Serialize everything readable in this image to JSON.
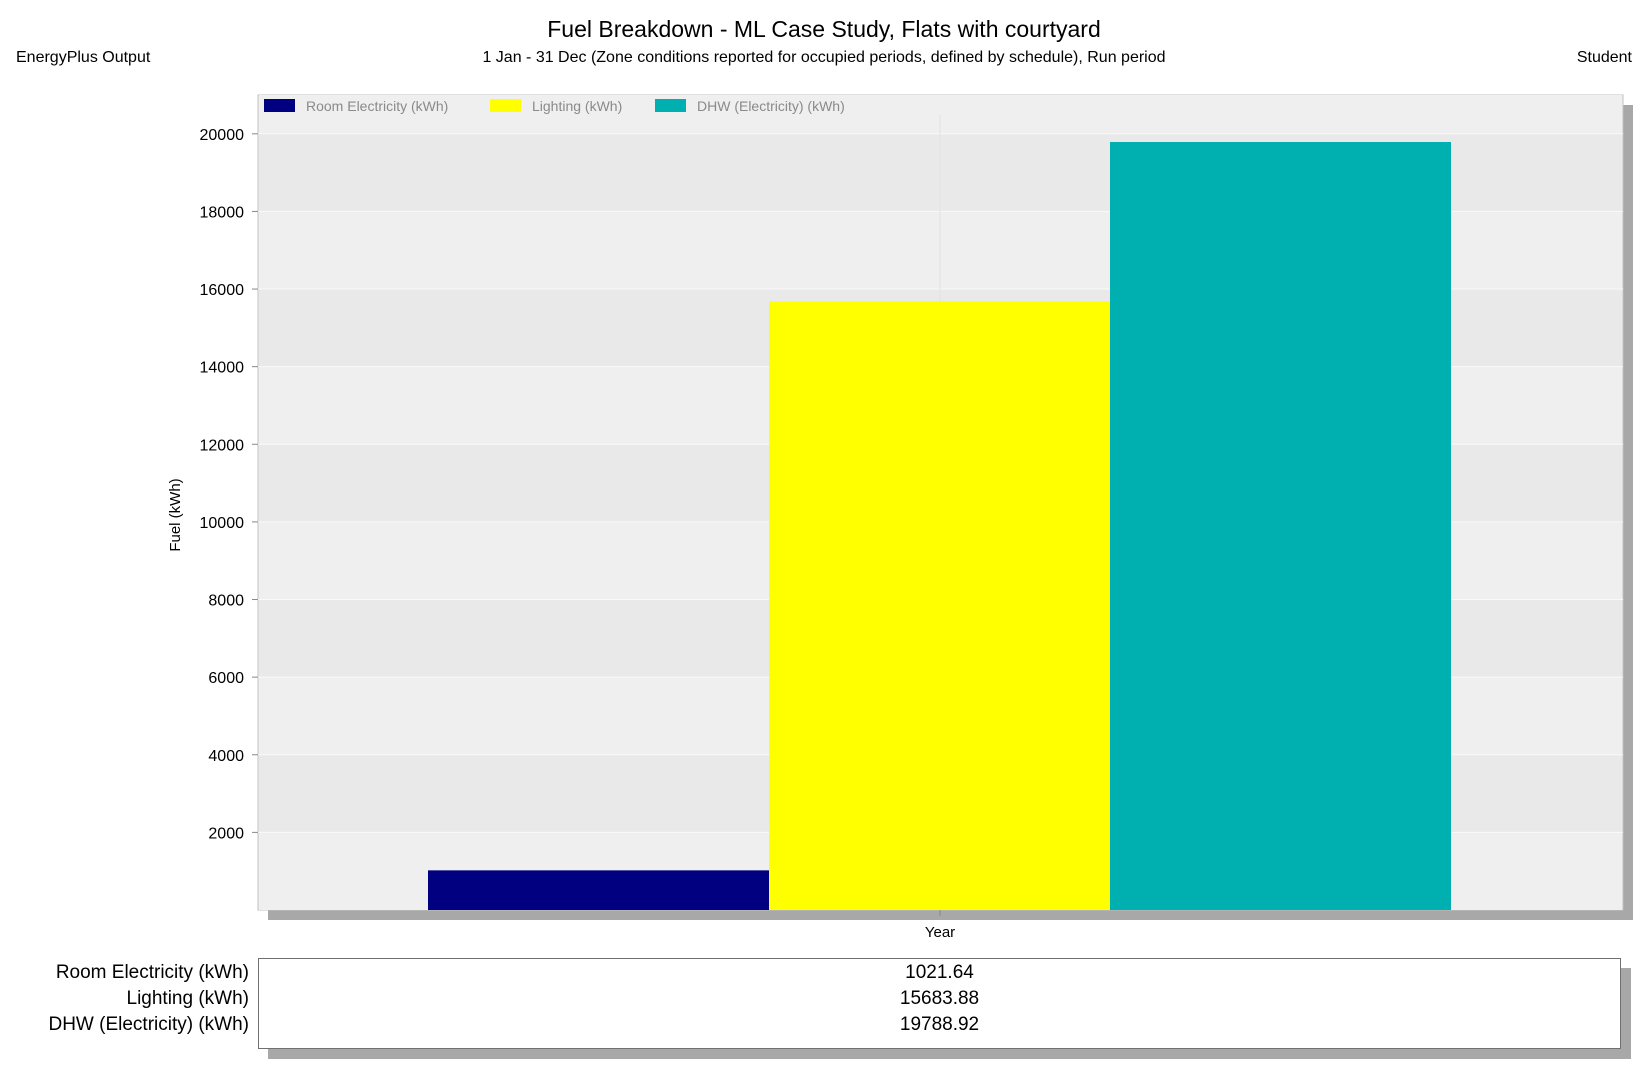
{
  "header": {
    "title": "Fuel Breakdown - ML Case Study, Flats with courtyard",
    "subtitle": "1 Jan - 31 Dec (Zone conditions reported for occupied periods, defined by schedule), Run period",
    "source": "EnergyPlus Output",
    "user": "Student"
  },
  "chart_data": {
    "type": "bar",
    "title": "Fuel Breakdown - ML Case Study, Flats with courtyard",
    "subtitle": "1 Jan - 31 Dec (Zone conditions reported for occupied periods, defined by schedule), Run period",
    "categories": [
      "Year"
    ],
    "xlabel": "Year",
    "ylabel": "Fuel (kWh)",
    "ylim": [
      0,
      21000
    ],
    "yticks": [
      2000,
      4000,
      6000,
      8000,
      10000,
      12000,
      14000,
      16000,
      18000,
      20000
    ],
    "grid": true,
    "legend_position": "top-left",
    "series": [
      {
        "name": "Room Electricity (kWh)",
        "values": [
          1021.64
        ],
        "color": "#000080"
      },
      {
        "name": "Lighting (kWh)",
        "values": [
          15683.88
        ],
        "color": "#ffff00"
      },
      {
        "name": "DHW (Electricity) (kWh)",
        "values": [
          19788.92
        ],
        "color": "#00b0b0"
      }
    ]
  },
  "table": {
    "rows": [
      {
        "label": "Room Electricity (kWh)",
        "value": "1021.64"
      },
      {
        "label": "Lighting (kWh)",
        "value": "15683.88"
      },
      {
        "label": "DHW (Electricity) (kWh)",
        "value": "19788.92"
      }
    ]
  }
}
